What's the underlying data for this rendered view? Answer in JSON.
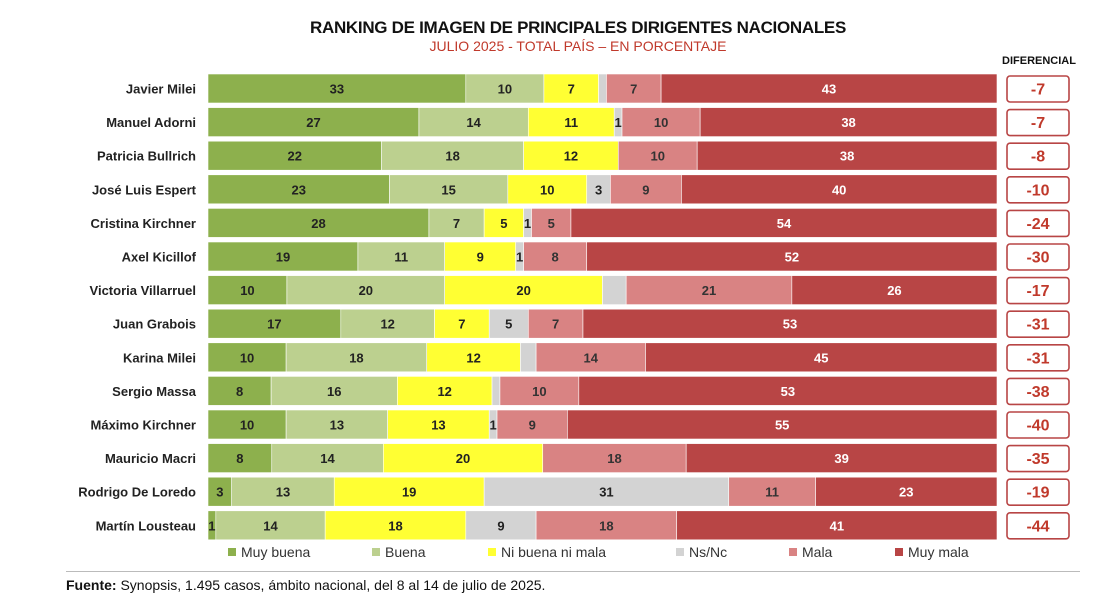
{
  "header": {
    "title": "RANKING DE IMAGEN DE PRINCIPALES DIRIGENTES NACIONALES",
    "subtitle": "JULIO 2025 - TOTAL PAÍS – EN PORCENTAJE",
    "differential_label": "DIFERENCIAL"
  },
  "footer": {
    "source_label": "Fuente:",
    "source_text": " Synopsis, 1.495 casos, ámbito nacional, del 8 al 14 de julio de 2025."
  },
  "chart_data": {
    "type": "bar",
    "orientation": "horizontal-stacked-100",
    "title": "RANKING DE IMAGEN DE PRINCIPALES DIRIGENTES NACIONALES",
    "subtitle": "JULIO 2025 - TOTAL PAÍS – EN PORCENTAJE",
    "categories": [
      "Javier Milei",
      "Manuel Adorni",
      "Patricia Bullrich",
      "José Luis Espert",
      "Cristina Kirchner",
      "Axel Kicillof",
      "Victoria Villarruel",
      "Juan Grabois",
      "Karina Milei",
      "Sergio Massa",
      "Máximo Kirchner",
      "Mauricio Macri",
      "Rodrigo De Loredo",
      "Martín Lousteau"
    ],
    "series": [
      {
        "name": "Muy buena",
        "color": "#8db04d",
        "values": [
          33,
          27,
          22,
          23,
          28,
          19,
          10,
          17,
          10,
          8,
          10,
          8,
          3,
          1
        ]
      },
      {
        "name": "Buena",
        "color": "#bcd08f",
        "values": [
          10,
          14,
          18,
          15,
          7,
          11,
          20,
          12,
          18,
          16,
          13,
          14,
          13,
          14
        ]
      },
      {
        "name": "Ni buena ni mala",
        "color": "#ffff33",
        "values": [
          7,
          11,
          12,
          10,
          5,
          9,
          20,
          7,
          12,
          12,
          13,
          20,
          19,
          18
        ]
      },
      {
        "name": "Ns/Nc",
        "color": "#d3d3d3",
        "values": [
          1,
          1,
          0,
          3,
          1,
          1,
          3,
          5,
          2,
          1,
          1,
          0,
          31,
          9
        ]
      },
      {
        "name": "Mala",
        "color": "#d98383",
        "values": [
          7,
          10,
          10,
          9,
          5,
          8,
          21,
          7,
          14,
          10,
          9,
          18,
          11,
          18
        ]
      },
      {
        "name": "Muy mala",
        "color": "#b84545",
        "values": [
          43,
          38,
          38,
          40,
          54,
          52,
          26,
          53,
          45,
          53,
          55,
          39,
          23,
          41
        ]
      }
    ],
    "data_labels": [
      [
        "33",
        "10",
        "7",
        "",
        "7",
        "43"
      ],
      [
        "27",
        "14",
        "11",
        "1",
        "10",
        "38"
      ],
      [
        "22",
        "18",
        "12",
        "",
        "10",
        "38"
      ],
      [
        "23",
        "15",
        "10",
        "3",
        "9",
        "40"
      ],
      [
        "28",
        "7",
        "5",
        "1",
        "5",
        "54"
      ],
      [
        "19",
        "11",
        "9",
        "1",
        "8",
        "52"
      ],
      [
        "10",
        "20",
        "20",
        "",
        "21",
        "26"
      ],
      [
        "17",
        "12",
        "7",
        "5",
        "7",
        "53"
      ],
      [
        "10",
        "18",
        "12",
        "",
        "14",
        "45"
      ],
      [
        "8",
        "16",
        "12",
        "",
        "10",
        "53"
      ],
      [
        "10",
        "13",
        "13",
        "1",
        "9",
        "55"
      ],
      [
        "8",
        "14",
        "20",
        "",
        "18",
        "39"
      ],
      [
        "3",
        "13",
        "19",
        "31",
        "11",
        "23"
      ],
      [
        "1",
        "14",
        "18",
        "9",
        "18",
        "41"
      ]
    ],
    "differential": [
      "-7",
      "-7",
      "-8",
      "-10",
      "-24",
      "-30",
      "-17",
      "-31",
      "-31",
      "-38",
      "-40",
      "-35",
      "-19",
      "-44"
    ],
    "legend_placement": "bottom",
    "grid": false
  }
}
